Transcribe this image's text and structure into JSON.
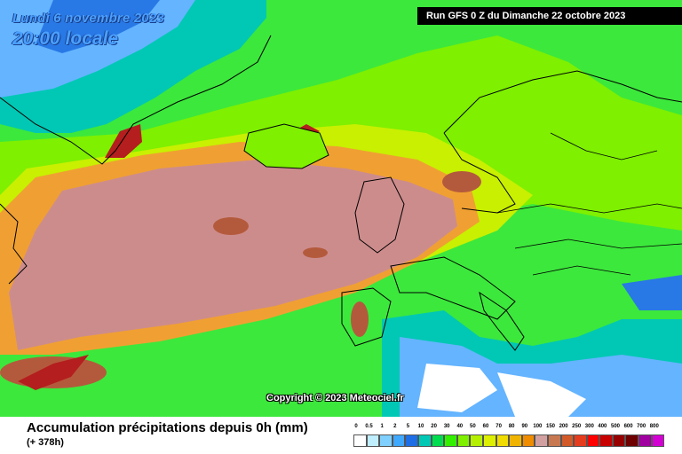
{
  "header": {
    "date": "Lundi 6 novembre 2023",
    "time": "20:00 locale",
    "run": "Run GFS 0 Z du Dimanche 22 octobre 2023"
  },
  "copyright": "Copyright © 2023 Meteociel.fr",
  "footer": {
    "title": "Accumulation précipitations depuis 0h (mm)",
    "subtitle": "(+ 378h)"
  },
  "legend": {
    "labels": [
      "0",
      "0.5",
      "1",
      "2",
      "5",
      "10",
      "20",
      "30",
      "40",
      "50",
      "60",
      "70",
      "80",
      "90",
      "100",
      "150",
      "200",
      "250",
      "300",
      "400",
      "500",
      "600",
      "700",
      "800"
    ],
    "colors": [
      "#ffffff",
      "#bfeeff",
      "#7fd0ff",
      "#3fa8ff",
      "#1e6fe6",
      "#00c8b4",
      "#00dc50",
      "#32f000",
      "#7ef000",
      "#b4f000",
      "#dcf000",
      "#f0dc00",
      "#f0b400",
      "#f08c00",
      "#d2a0a0",
      "#c87850",
      "#d25a28",
      "#e63c1e",
      "#ff0000",
      "#c80000",
      "#960000",
      "#6e0000",
      "#a000a0",
      "#d200d2"
    ]
  },
  "map": {
    "colors": {
      "ocean_green": "#3ce83c",
      "bright_green": "#7ef000",
      "yellow_green": "#c8f000",
      "orange": "#f0a032",
      "pink": "#cd8c8c",
      "brown": "#b45a3c",
      "dark_red": "#b41e1e",
      "cyan": "#00c8b4",
      "light_blue": "#64b4ff",
      "blue": "#2878e6",
      "white": "#ffffff"
    }
  }
}
